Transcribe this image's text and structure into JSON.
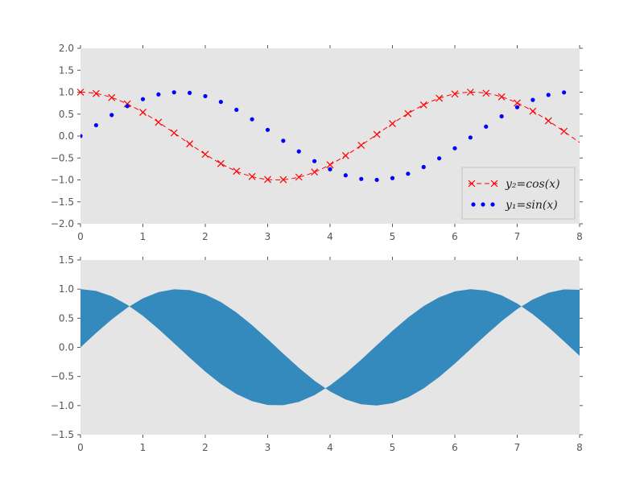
{
  "chart_data": [
    {
      "type": "line",
      "background_color": "#e5e5e5",
      "grid": false,
      "xlim": [
        0,
        8
      ],
      "ylim": [
        -2,
        2
      ],
      "x_ticks": [
        "0",
        "1",
        "2",
        "3",
        "4",
        "5",
        "6",
        "7",
        "8"
      ],
      "y_ticks": [
        "2.0",
        "1.5",
        "1.0",
        "0.5",
        "0.0",
        "−0.5",
        "−1.0",
        "−1.5",
        "−2.0"
      ],
      "x": [
        0,
        0.25,
        0.5,
        0.75,
        1,
        1.25,
        1.5,
        1.75,
        2,
        2.25,
        2.5,
        2.75,
        3,
        3.25,
        3.5,
        3.75,
        4,
        4.25,
        4.5,
        4.75,
        5,
        5.25,
        5.5,
        5.75,
        6,
        6.25,
        6.5,
        6.75,
        7,
        7.25,
        7.5,
        7.75
      ],
      "series": [
        {
          "name": "y₂=cos(x)",
          "color": "#ff0000",
          "style": "dashed line with x markers",
          "values": [
            1.0,
            0.969,
            0.878,
            0.732,
            0.54,
            0.315,
            0.071,
            -0.178,
            -0.416,
            -0.628,
            -0.801,
            -0.924,
            -0.99,
            -0.994,
            -0.936,
            -0.82,
            -0.654,
            -0.446,
            -0.211,
            0.038,
            0.284,
            0.512,
            0.709,
            0.862,
            0.96,
            1.0,
            0.977,
            0.894,
            0.754,
            0.566,
            0.347,
            0.108
          ]
        },
        {
          "name": "y₁=sin(x)",
          "color": "#0000ff",
          "style": "dot markers",
          "values": [
            0.0,
            0.247,
            0.479,
            0.682,
            0.841,
            0.949,
            0.997,
            0.984,
            0.909,
            0.778,
            0.598,
            0.382,
            0.141,
            -0.108,
            -0.351,
            -0.572,
            -0.757,
            -0.895,
            -0.978,
            -0.999,
            -0.959,
            -0.859,
            -0.706,
            -0.508,
            -0.279,
            -0.033,
            0.215,
            0.45,
            0.657,
            0.823,
            0.938,
            0.994
          ]
        }
      ],
      "legend": {
        "placement": "lower-right",
        "entries": [
          "y₂=cos(x)",
          "y₁=sin(x)"
        ]
      }
    },
    {
      "type": "area",
      "background_color": "#e5e5e5",
      "fill_color": "#348abd",
      "grid": false,
      "xlim": [
        0,
        8
      ],
      "ylim": [
        -1.5,
        1.5
      ],
      "x_ticks": [
        "0",
        "1",
        "2",
        "3",
        "4",
        "5",
        "6",
        "7",
        "8"
      ],
      "y_ticks": [
        "1.5",
        "1.0",
        "0.5",
        "0.0",
        "−0.5",
        "−1.0",
        "−1.5"
      ],
      "description_of_fill": "region between y=sin(x) and y=cos(x)",
      "x_range": [
        0,
        8
      ]
    }
  ]
}
